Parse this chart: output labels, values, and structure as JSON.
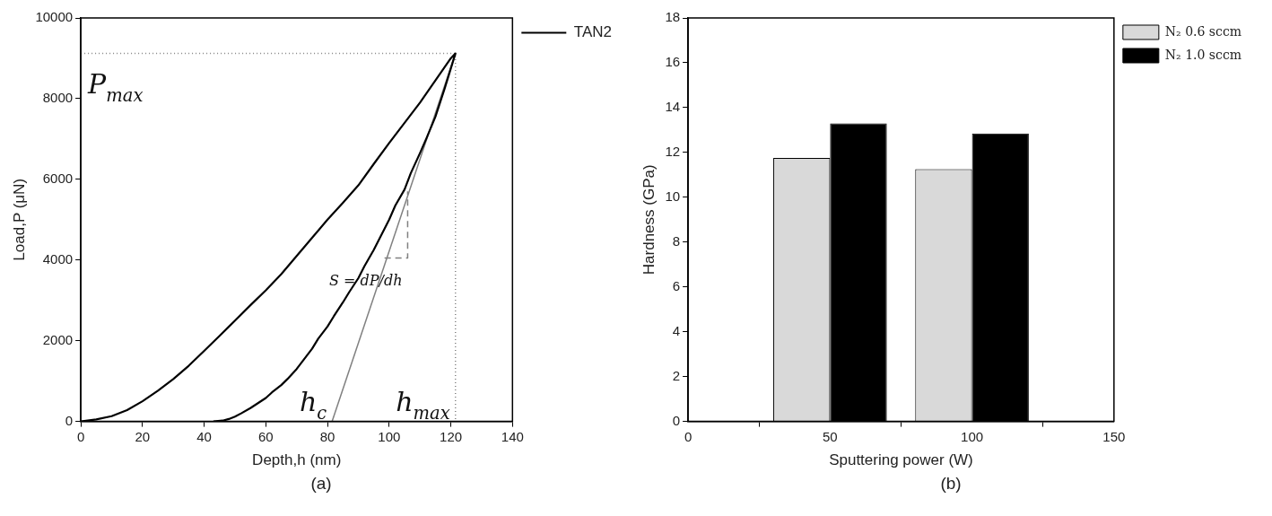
{
  "chart_data": [
    {
      "type": "line",
      "xlabel": "Depth,h (nm)",
      "ylabel": "Load,P (μN)",
      "xlim": [
        0,
        140
      ],
      "xticks": [
        0,
        20,
        40,
        60,
        80,
        100,
        120,
        140
      ],
      "ylim": [
        0,
        10000
      ],
      "yticks": [
        0,
        2000,
        4000,
        6000,
        8000,
        10000
      ],
      "legend": "top right",
      "marker": "none",
      "series": [
        {
          "name": "TAN2",
          "color": "#000000",
          "x": [
            0,
            5,
            10,
            15,
            20,
            25,
            30,
            35,
            40,
            45,
            50,
            55,
            60,
            65,
            70,
            75,
            80,
            85,
            90,
            95,
            100,
            105,
            110,
            115,
            120,
            121.5,
            118,
            115,
            112,
            110,
            107,
            105,
            102,
            100,
            97,
            95,
            92,
            90,
            87,
            85,
            82,
            80,
            77,
            75,
            72,
            70,
            67,
            65,
            62,
            60,
            57,
            55,
            52,
            50,
            48,
            46,
            43
          ],
          "values": [
            0,
            50,
            130,
            280,
            500,
            760,
            1050,
            1380,
            1750,
            2120,
            2500,
            2880,
            3250,
            3650,
            4100,
            4550,
            5000,
            5420,
            5850,
            6380,
            6900,
            7400,
            7900,
            8450,
            9000,
            9120,
            8250,
            7550,
            7000,
            6650,
            6150,
            5750,
            5350,
            5000,
            4550,
            4250,
            3850,
            3550,
            3200,
            2950,
            2600,
            2350,
            2050,
            1800,
            1500,
            1300,
            1050,
            900,
            720,
            580,
            430,
            330,
            200,
            120,
            60,
            20,
            0
          ]
        },
        {
          "color": "#808080",
          "x": [
            81.5,
            121.5
          ],
          "values": [
            0,
            9120
          ]
        },
        {
          "color": "#808080",
          "line_style": "dashed",
          "x": [
            98.5,
            106,
            106
          ],
          "values": [
            4050,
            4050,
            5700
          ]
        },
        {
          "color": "#808080",
          "line_style": "dotted",
          "x": [
            0,
            121.5,
            121.5
          ],
          "values": [
            9120,
            9120,
            0
          ]
        }
      ],
      "annotations": [
        {
          "text": "P$_{max}$",
          "x": 0,
          "y": 9120
        },
        {
          "text": "h$_{c}$",
          "x": 81.5,
          "y": 0
        },
        {
          "text": "h$_{max}$",
          "x": 121.5,
          "y": 0
        },
        {
          "text": "S = dP/dh",
          "x": 106,
          "y": 4050
        },
        "(a)"
      ]
    },
    {
      "type": "bar",
      "xlabel": "Sputtering power (W)",
      "ylabel": "Hardness (GPa)",
      "x": [
        50,
        100
      ],
      "xlim": [
        0,
        150
      ],
      "xticks": [
        0,
        50,
        100,
        150
      ],
      "ylim": [
        0,
        18
      ],
      "yticks": [
        0,
        2,
        4,
        6,
        8,
        10,
        12,
        14,
        16,
        18
      ],
      "legend": "top right",
      "series": [
        {
          "name": "N₂ 0.6 sccm",
          "color": "#d9d9d9",
          "values": [
            11.75,
            11.25
          ]
        },
        {
          "name": "N₂ 1.0 sccm",
          "color": "#000000",
          "values": [
            13.3,
            12.85
          ]
        }
      ],
      "annotations": [
        "(b)"
      ]
    }
  ]
}
